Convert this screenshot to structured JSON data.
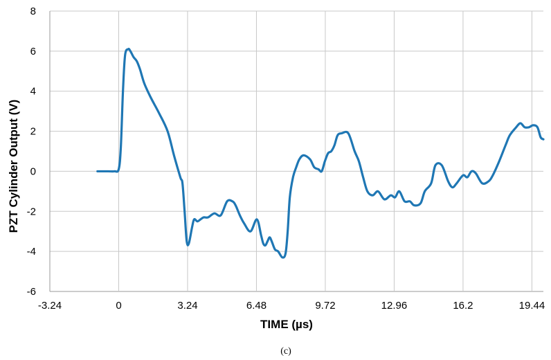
{
  "chart_data": {
    "type": "line",
    "title": "",
    "xlabel": "TIME  (µs)",
    "ylabel": "PZT Cylinder Output  (V)",
    "caption": "(c)",
    "xlim": [
      -3.24,
      19.98
    ],
    "ylim": [
      -6,
      8
    ],
    "x_ticks": [
      -3.24,
      0,
      3.24,
      6.48,
      9.72,
      12.96,
      16.2,
      19.44
    ],
    "x_tick_labels": [
      "-3.24",
      "0",
      "3.24",
      "6.48",
      "9.72",
      "12.96",
      "16.2",
      "19.44"
    ],
    "y_ticks": [
      -6,
      -4,
      -2,
      0,
      2,
      4,
      6,
      8
    ],
    "y_tick_labels": [
      "-6",
      "-4",
      "-2",
      "0",
      "2",
      "4",
      "6",
      "8"
    ],
    "grid": true,
    "legend": "none",
    "series": [
      {
        "color": "#1f77b4",
        "x": [
          -1.0,
          -0.5,
          -0.2,
          0.0,
          0.1,
          0.2,
          0.3,
          0.45,
          0.55,
          0.7,
          0.85,
          1.0,
          1.2,
          1.5,
          1.9,
          2.3,
          2.6,
          2.9,
          3.0,
          3.1,
          3.2,
          3.3,
          3.45,
          3.55,
          3.7,
          3.85,
          4.0,
          4.2,
          4.5,
          4.8,
          5.1,
          5.35,
          5.5,
          5.7,
          5.9,
          6.2,
          6.5,
          6.7,
          6.8,
          6.9,
          7.0,
          7.1,
          7.2,
          7.35,
          7.5,
          7.7,
          7.85,
          7.95,
          8.05,
          8.2,
          8.35,
          8.5,
          8.7,
          9.0,
          9.2,
          9.4,
          9.55,
          9.7,
          9.85,
          10.0,
          10.15,
          10.3,
          10.5,
          10.8,
          11.1,
          11.3,
          11.5,
          11.7,
          11.95,
          12.2,
          12.5,
          12.8,
          13.0,
          13.2,
          13.45,
          13.7,
          13.9,
          14.2,
          14.4,
          14.7,
          14.9,
          15.2,
          15.5,
          15.7,
          15.9,
          16.2,
          16.4,
          16.6,
          16.8,
          17.1,
          17.4,
          17.6,
          17.9,
          18.2,
          18.4,
          18.7,
          18.9,
          19.1,
          19.3,
          19.5,
          19.7,
          19.85,
          19.98
        ],
        "y": [
          0.0,
          0.0,
          0.0,
          0.1,
          1.2,
          4.0,
          5.8,
          6.1,
          6.0,
          5.7,
          5.5,
          5.1,
          4.4,
          3.7,
          2.9,
          2.0,
          0.8,
          -0.3,
          -0.6,
          -2.0,
          -3.5,
          -3.6,
          -2.8,
          -2.4,
          -2.5,
          -2.4,
          -2.3,
          -2.3,
          -2.1,
          -2.2,
          -1.5,
          -1.5,
          -1.7,
          -2.2,
          -2.6,
          -3.0,
          -2.4,
          -3.2,
          -3.6,
          -3.7,
          -3.5,
          -3.3,
          -3.5,
          -3.9,
          -4.0,
          -4.3,
          -4.1,
          -3.0,
          -1.3,
          -0.3,
          0.2,
          0.6,
          0.8,
          0.6,
          0.2,
          0.1,
          0.0,
          0.5,
          0.9,
          1.0,
          1.3,
          1.8,
          1.9,
          1.9,
          1.0,
          0.5,
          -0.3,
          -1.0,
          -1.2,
          -1.0,
          -1.4,
          -1.2,
          -1.3,
          -1.0,
          -1.5,
          -1.5,
          -1.7,
          -1.6,
          -1.0,
          -0.6,
          0.3,
          0.3,
          -0.5,
          -0.8,
          -0.6,
          -0.2,
          -0.3,
          0.0,
          -0.1,
          -0.6,
          -0.5,
          -0.2,
          0.5,
          1.3,
          1.8,
          2.2,
          2.4,
          2.2,
          2.2,
          2.3,
          2.2,
          1.7,
          1.6
        ]
      }
    ]
  }
}
